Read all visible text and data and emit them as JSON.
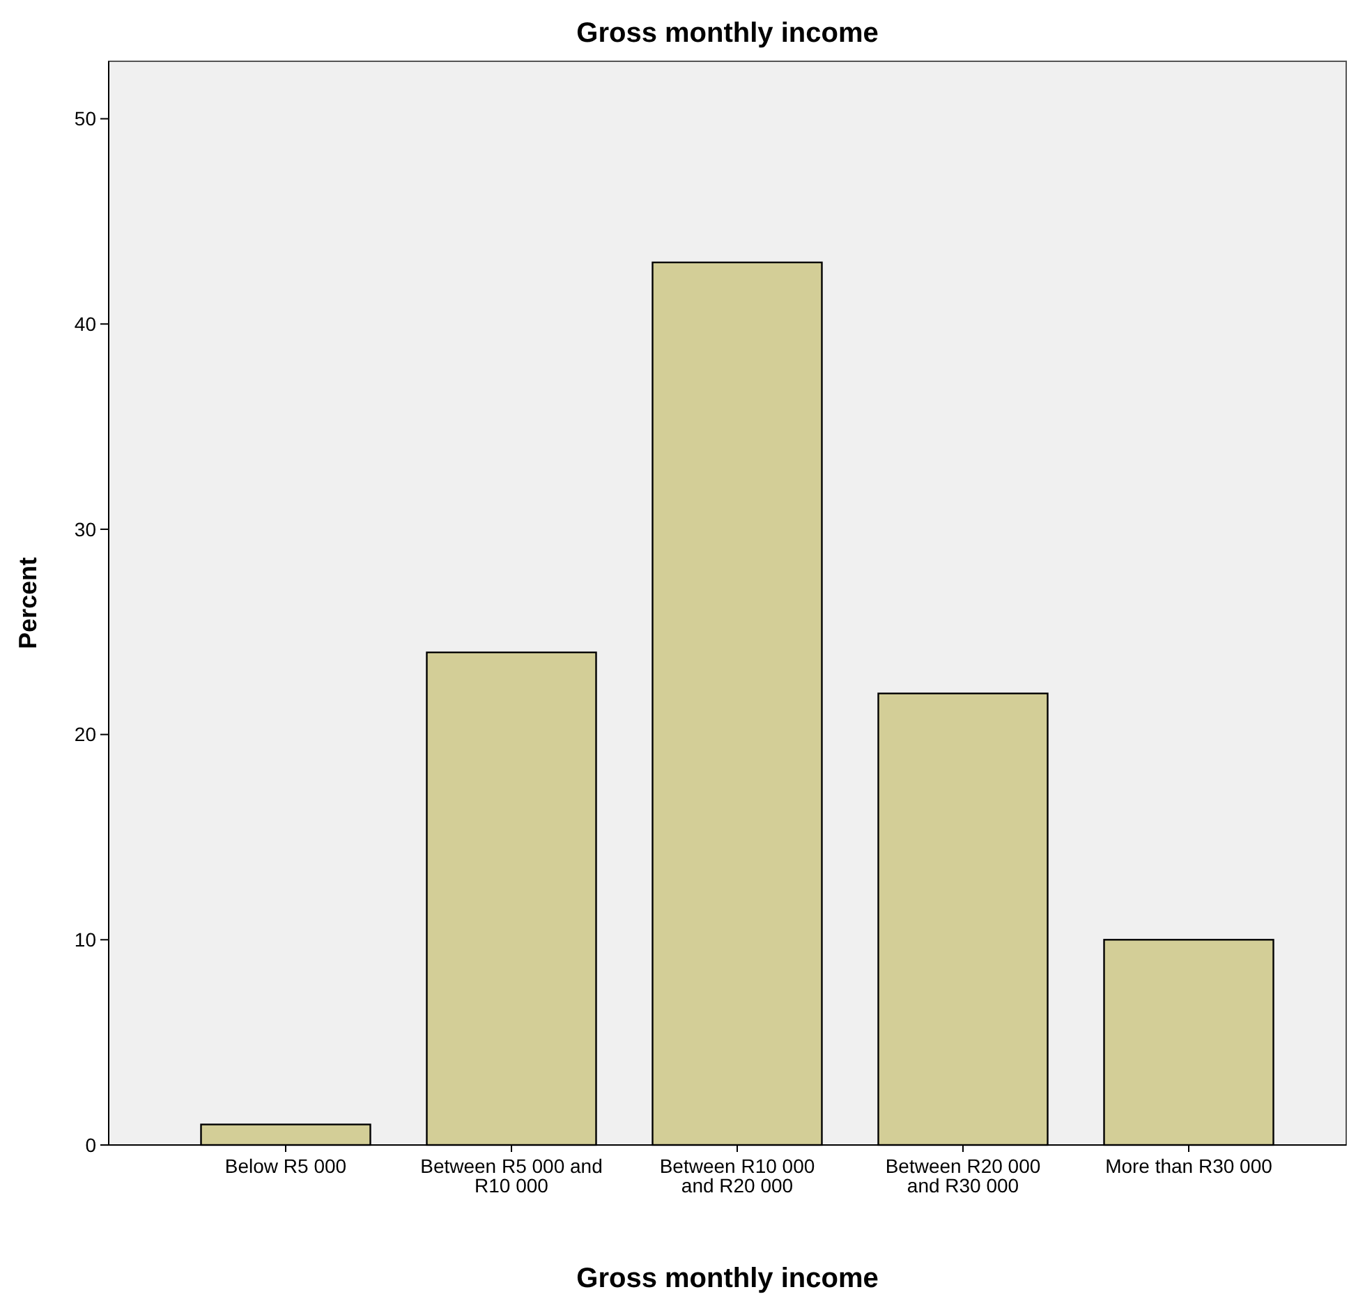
{
  "chart_data": {
    "type": "bar",
    "title": "Gross monthly income",
    "xlabel": "Gross monthly income",
    "ylabel": "Percent",
    "categories": [
      "Below R5 000",
      "Between R5 000 and R10 000",
      "Between R10 000 and R20 000",
      "Between R20 000 and R30 000",
      "More than R30 000"
    ],
    "values": [
      1,
      24,
      43,
      22,
      10
    ],
    "color": "#d3ce97",
    "ylim": [
      0,
      52.8
    ],
    "yticks": [
      0,
      10,
      20,
      30,
      40,
      50
    ],
    "grid": false
  }
}
